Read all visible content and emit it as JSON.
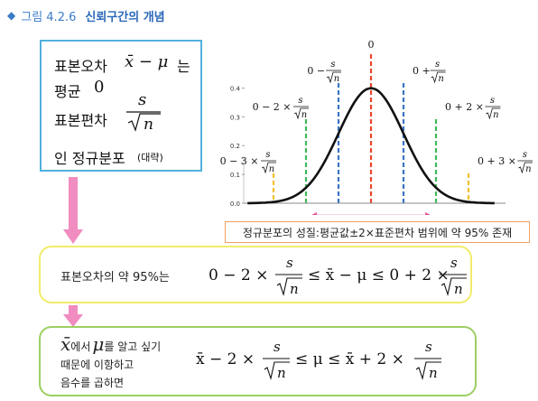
{
  "figure": {
    "prefix": "그림 4.2.6",
    "title": "신뢰구간의 개념"
  },
  "top_box": {
    "l1_label": "표본오차",
    "l1_math": "x̄ − μ",
    "l1_suffix": "는",
    "l2_label": "평균",
    "l2_math": "0",
    "l3_label": "표본편차",
    "l3_num": "s",
    "l3_den": "n",
    "l4_label": "인 정규분포",
    "l4_note": "(대략)"
  },
  "chart_data": {
    "type": "line",
    "curve": "normal density",
    "y_ticks": [
      "0.0",
      "0.1",
      "0.2",
      "0.3",
      "0.4"
    ],
    "ylim": [
      0,
      0.42
    ],
    "peak": 0.399,
    "markers": [
      {
        "k": -3,
        "label": "0 − 3 ×",
        "color": "#f2c12e"
      },
      {
        "k": -2,
        "label": "0 − 2 ×",
        "color": "#3fb85a"
      },
      {
        "k": -1,
        "label": "0 −",
        "color": "#3b74c4"
      },
      {
        "k": 0,
        "label": "0",
        "color": "#e8462e"
      },
      {
        "k": 1,
        "label": "0 +",
        "color": "#3b74c4"
      },
      {
        "k": 2,
        "label": "0 + 2 ×",
        "color": "#3fb85a"
      },
      {
        "k": 3,
        "label": "0 + 3 ×",
        "color": "#f2c12e"
      }
    ],
    "frac_num": "s",
    "frac_den": "n",
    "range_arrow": {
      "from": -2,
      "to": 2,
      "color": "#e8559a"
    }
  },
  "property_box": {
    "text": "정규분포의 성질:평균값±2×표준편차 범위에 약 95% 존재"
  },
  "mid_box": {
    "label": "표본오차의 약 95%는",
    "formula_a": "0 − 2 ×",
    "formula_b": "≤ x̄ − μ ≤ 0 + 2 ×",
    "num": "s",
    "den": "n"
  },
  "bot_box": {
    "var1": "x̄",
    "text1": "에서",
    "var2": "μ",
    "text2": "를 알고 싶기",
    "line2": "때문에 이항하고",
    "line3": "음수를 곱하면",
    "formula_a": "x̄ − 2 ×",
    "formula_b": "≤ μ ≤ x̄ + 2 ×",
    "num": "s",
    "den": "n"
  },
  "colors": {
    "accent_blue": "#2a67b8",
    "arrow_pink": "#f08cc0",
    "top_border": "#53b0de",
    "mid_border": "#f2ec6b",
    "bot_border": "#9ccf63",
    "prop_border": "#f0a060"
  }
}
